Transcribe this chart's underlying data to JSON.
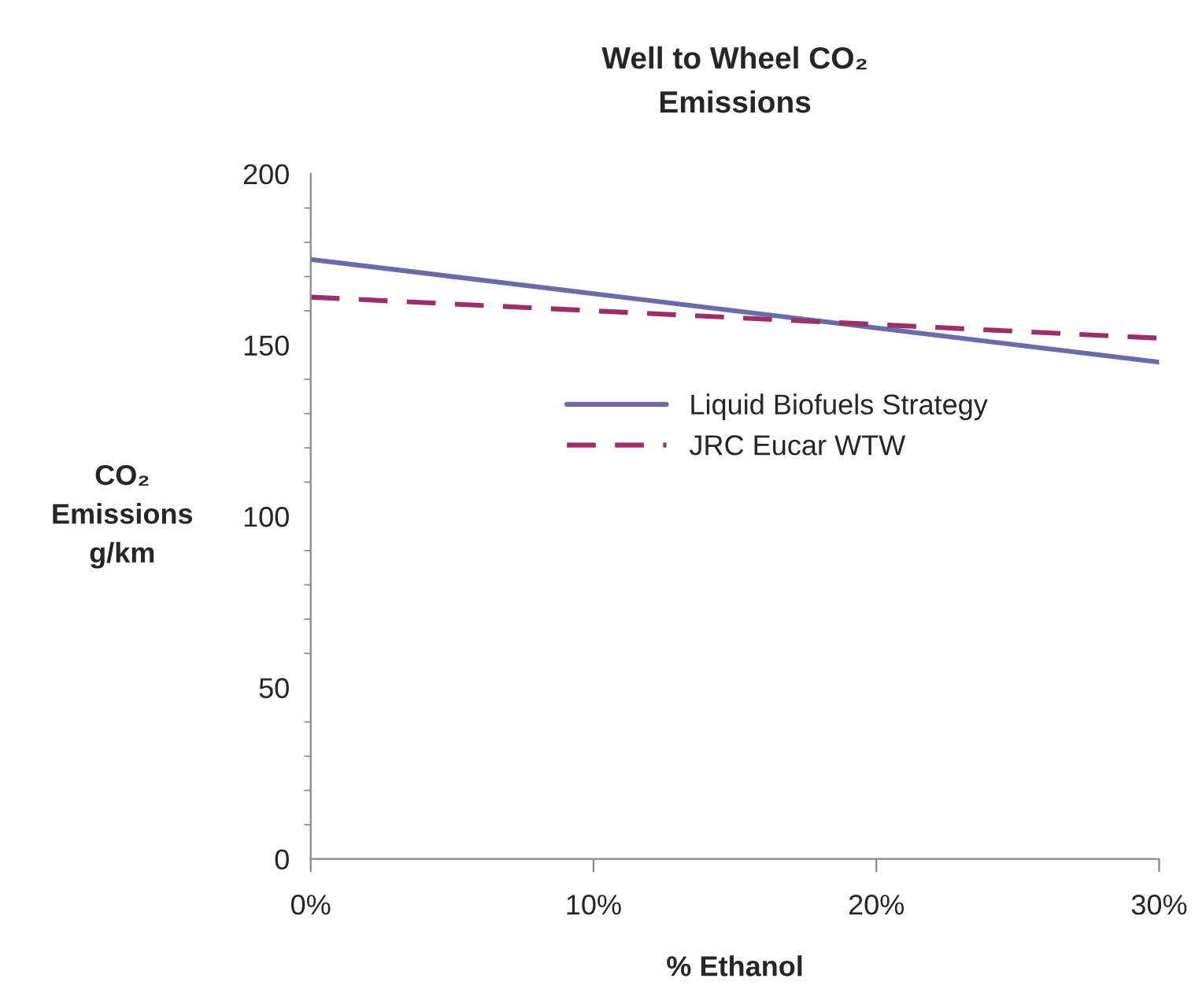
{
  "chart_data": {
    "type": "line",
    "title": "Well to Wheel CO₂\nEmissions",
    "xlabel": "% Ethanol",
    "ylabel": "CO₂\nEmissions\ng/km",
    "x": [
      0,
      10,
      20,
      30
    ],
    "series": [
      {
        "name": "Liquid Biofuels Strategy",
        "color": "#6b6ba8",
        "values": [
          175,
          165,
          155,
          145
        ],
        "line_style": "solid"
      },
      {
        "name": "JRC Eucar WTW",
        "color": "#9b3068",
        "values": [
          164,
          160,
          156,
          152
        ],
        "line_style": "dashed"
      }
    ],
    "xlim": [
      0,
      30
    ],
    "xticks": [
      {
        "value": 0,
        "label": "0%"
      },
      {
        "value": 10,
        "label": "10%"
      },
      {
        "value": 20,
        "label": "20%"
      },
      {
        "value": 30,
        "label": "30%"
      }
    ],
    "ylim": [
      0,
      200
    ],
    "yticks": [
      0,
      50,
      100,
      150,
      200
    ],
    "grid": false,
    "legend": "center",
    "marker": "none"
  }
}
